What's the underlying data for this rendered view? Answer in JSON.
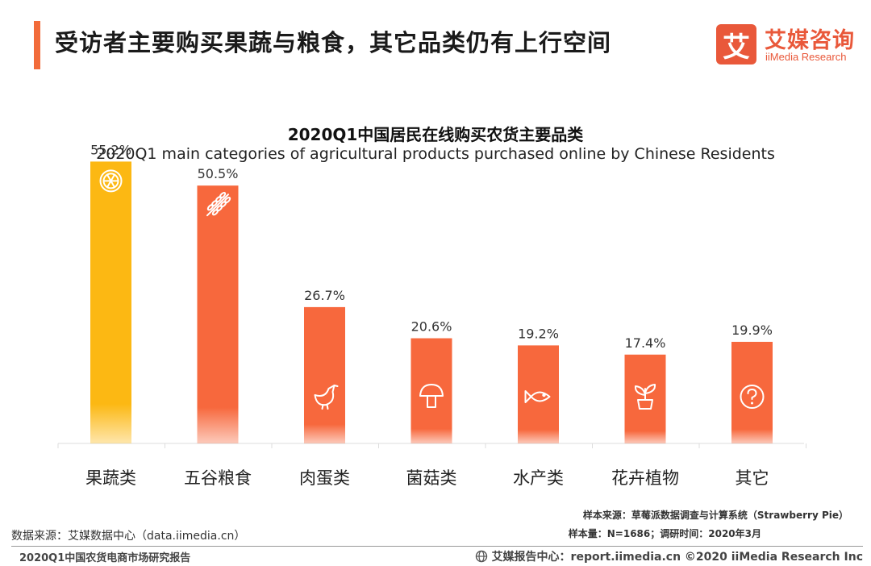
{
  "page": {
    "title": "受访者主要购买果蔬与粮食，其它品类仍有上行空间"
  },
  "logo": {
    "mark": "艾",
    "name_cn": "艾媒咨询",
    "name_en": "iiMedia Research",
    "color": "#e9583a"
  },
  "chart_data": {
    "type": "bar",
    "title": "2020Q1中国居民在线购买农货主要品类",
    "subtitle": "2020Q1 main categories of agricultural products purchased online by Chinese Residents",
    "categories": [
      "果蔬类",
      "五谷粮食",
      "肉蛋类",
      "菌菇类",
      "水产类",
      "花卉植物",
      "其它"
    ],
    "values": [
      55.2,
      50.5,
      26.7,
      20.6,
      19.2,
      17.4,
      19.9
    ],
    "labels": [
      "55.2%",
      "50.5%",
      "26.7%",
      "20.6%",
      "19.2%",
      "17.4%",
      "19.9%"
    ],
    "icons": [
      "lemon-icon",
      "wheat-icon",
      "chicken-icon",
      "mushroom-icon",
      "fish-icon",
      "plant-icon",
      "question-icon"
    ],
    "unit": "%",
    "ylim": [
      0,
      60
    ],
    "xlabel": "",
    "ylabel": "",
    "grid": false,
    "legend": "none",
    "colors": {
      "highlight": "#fcb813",
      "bar": "#f7683d"
    }
  },
  "footer": {
    "data_source": "数据来源：艾媒数据中心（data.iimedia.cn）",
    "sample_source": "样本来源：草莓派数据调查与计算系统（Strawberry    Pie）",
    "sample_size": "样本量：N=1686；调研时间：2020年3月",
    "report_name": "2020Q1中国农货电商市场研究报告",
    "report_center": "艾媒报告中心：report.iimedia.cn    ©2020  iiMedia Research  Inc"
  }
}
